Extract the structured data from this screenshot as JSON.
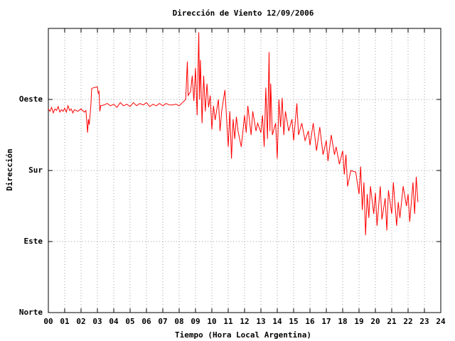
{
  "chart_data": {
    "type": "line",
    "title": "Dirección de Viento 12/09/2006",
    "xlabel": "Tiempo (Hora Local Argentina)",
    "ylabel": "Dirección",
    "color": "#ff0000",
    "grid": true,
    "xlim": [
      0,
      24
    ],
    "ylim": [
      0,
      360
    ],
    "xticks": [
      {
        "value": 0,
        "label": "00"
      },
      {
        "value": 1,
        "label": "01"
      },
      {
        "value": 2,
        "label": "02"
      },
      {
        "value": 3,
        "label": "03"
      },
      {
        "value": 4,
        "label": "04"
      },
      {
        "value": 5,
        "label": "05"
      },
      {
        "value": 6,
        "label": "06"
      },
      {
        "value": 7,
        "label": "07"
      },
      {
        "value": 8,
        "label": "08"
      },
      {
        "value": 9,
        "label": "09"
      },
      10,
      11,
      12,
      13,
      14,
      15,
      16,
      17,
      18,
      19,
      20,
      21,
      22,
      23,
      24
    ],
    "yticks": [
      {
        "value": 0,
        "label": "Norte"
      },
      {
        "value": 90,
        "label": "Este"
      },
      {
        "value": 180,
        "label": "Sur"
      },
      {
        "value": 270,
        "label": "Oeste"
      }
    ],
    "x": [
      0,
      0.1,
      0.2,
      0.3,
      0.4,
      0.5,
      0.6,
      0.7,
      0.8,
      0.9,
      1.0,
      1.1,
      1.2,
      1.3,
      1.4,
      1.5,
      1.6,
      1.8,
      2.0,
      2.2,
      2.3,
      2.4,
      2.45,
      2.5,
      2.6,
      2.65,
      2.8,
      3.0,
      3.05,
      3.1,
      3.15,
      3.2,
      3.4,
      3.6,
      3.8,
      4.0,
      4.2,
      4.4,
      4.6,
      4.8,
      5.0,
      5.2,
      5.4,
      5.6,
      5.8,
      6.0,
      6.2,
      6.4,
      6.6,
      6.8,
      7.0,
      7.2,
      7.4,
      7.6,
      7.8,
      8.0,
      8.2,
      8.4,
      8.5,
      8.55,
      8.7,
      8.8,
      8.9,
      9.0,
      9.1,
      9.2,
      9.25,
      9.3,
      9.4,
      9.5,
      9.6,
      9.7,
      9.8,
      9.9,
      10.0,
      10.1,
      10.2,
      10.4,
      10.5,
      10.6,
      10.8,
      11.0,
      11.1,
      11.2,
      11.3,
      11.4,
      11.5,
      11.6,
      11.8,
      12.0,
      12.1,
      12.2,
      12.4,
      12.5,
      12.7,
      12.8,
      13.0,
      13.1,
      13.2,
      13.3,
      13.4,
      13.5,
      13.55,
      13.6,
      13.7,
      13.9,
      14.0,
      14.1,
      14.2,
      14.3,
      14.4,
      14.5,
      14.7,
      14.9,
      15.0,
      15.2,
      15.3,
      15.5,
      15.7,
      15.9,
      16.0,
      16.2,
      16.4,
      16.6,
      16.8,
      17.0,
      17.1,
      17.3,
      17.5,
      17.6,
      17.8,
      18.0,
      18.1,
      18.2,
      18.3,
      18.5,
      18.8,
      19.0,
      19.1,
      19.2,
      19.3,
      19.4,
      19.5,
      19.6,
      19.7,
      19.9,
      20.0,
      20.1,
      20.3,
      20.4,
      20.6,
      20.7,
      20.8,
      21.0,
      21.1,
      21.3,
      21.4,
      21.5,
      21.7,
      21.9,
      22.0,
      22.1,
      22.3,
      22.4,
      22.5,
      22.6
    ],
    "values": [
      258,
      255,
      260,
      253,
      258,
      256,
      261,
      254,
      257,
      255,
      259,
      254,
      262,
      256,
      258,
      253,
      257,
      255,
      258,
      254,
      256,
      228,
      245,
      238,
      262,
      284,
      285,
      286,
      278,
      280,
      255,
      262,
      263,
      265,
      262,
      264,
      260,
      266,
      262,
      264,
      261,
      266,
      262,
      265,
      263,
      266,
      261,
      264,
      262,
      265,
      262,
      265,
      263,
      263,
      264,
      262,
      266,
      270,
      318,
      275,
      280,
      300,
      268,
      310,
      250,
      355,
      270,
      320,
      240,
      300,
      255,
      290,
      260,
      275,
      232,
      262,
      244,
      270,
      230,
      255,
      282,
      210,
      255,
      195,
      245,
      220,
      248,
      230,
      210,
      250,
      228,
      262,
      225,
      255,
      230,
      240,
      228,
      250,
      210,
      285,
      220,
      330,
      230,
      290,
      225,
      240,
      195,
      270,
      235,
      272,
      225,
      255,
      230,
      245,
      218,
      265,
      225,
      240,
      218,
      230,
      212,
      240,
      205,
      235,
      200,
      218,
      192,
      225,
      200,
      210,
      188,
      205,
      175,
      200,
      160,
      180,
      178,
      150,
      185,
      130,
      165,
      98,
      150,
      120,
      160,
      125,
      152,
      110,
      160,
      118,
      145,
      104,
      155,
      125,
      165,
      110,
      140,
      120,
      160,
      135,
      150,
      115,
      165,
      125,
      172,
      140
    ]
  }
}
